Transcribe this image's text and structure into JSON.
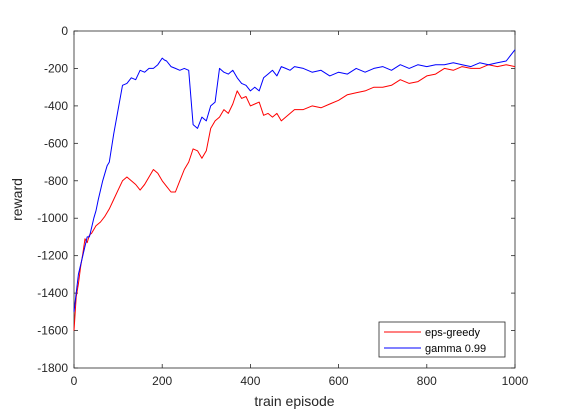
{
  "chart_data": {
    "type": "line",
    "xlabel": "train episode",
    "ylabel": "reward",
    "xlim": [
      0,
      1000
    ],
    "ylim": [
      -1800,
      0
    ],
    "xticks": [
      0,
      200,
      400,
      600,
      800,
      1000
    ],
    "yticks": [
      -1800,
      -1600,
      -1400,
      -1200,
      -1000,
      -800,
      -600,
      -400,
      -200,
      0
    ],
    "grid": false,
    "legend_position": "bottom-right",
    "series": [
      {
        "name": "eps-greedy",
        "color": "#ff0000",
        "x": [
          0,
          5,
          10,
          15,
          20,
          25,
          30,
          35,
          40,
          45,
          50,
          60,
          70,
          80,
          90,
          100,
          110,
          120,
          130,
          140,
          150,
          160,
          170,
          180,
          190,
          200,
          210,
          220,
          230,
          240,
          250,
          260,
          270,
          280,
          290,
          300,
          310,
          320,
          330,
          340,
          350,
          360,
          370,
          380,
          390,
          400,
          410,
          420,
          430,
          440,
          450,
          460,
          470,
          480,
          490,
          500,
          520,
          540,
          560,
          580,
          600,
          620,
          640,
          660,
          680,
          700,
          720,
          740,
          760,
          780,
          800,
          820,
          840,
          860,
          880,
          900,
          920,
          940,
          960,
          980,
          1000
        ],
        "y": [
          -1600,
          -1420,
          -1350,
          -1260,
          -1190,
          -1110,
          -1130,
          -1090,
          -1080,
          -1060,
          -1040,
          -1020,
          -990,
          -950,
          -900,
          -850,
          -800,
          -780,
          -800,
          -820,
          -850,
          -820,
          -780,
          -740,
          -760,
          -800,
          -830,
          -860,
          -860,
          -800,
          -740,
          -700,
          -630,
          -640,
          -680,
          -640,
          -520,
          -480,
          -460,
          -420,
          -440,
          -390,
          -320,
          -360,
          -350,
          -400,
          -390,
          -380,
          -450,
          -440,
          -460,
          -440,
          -480,
          -460,
          -440,
          -420,
          -420,
          -400,
          -410,
          -390,
          -370,
          -340,
          -330,
          -320,
          -300,
          -300,
          -290,
          -260,
          -280,
          -270,
          -240,
          -230,
          -200,
          -210,
          -190,
          -200,
          -200,
          -180,
          -190,
          -180,
          -190
        ]
      },
      {
        "name": "gamma 0.99",
        "color": "#0000ff",
        "x": [
          0,
          5,
          10,
          15,
          20,
          25,
          30,
          35,
          40,
          45,
          50,
          55,
          60,
          65,
          70,
          75,
          80,
          90,
          100,
          110,
          120,
          130,
          140,
          150,
          160,
          170,
          180,
          190,
          200,
          205,
          210,
          220,
          230,
          240,
          250,
          260,
          270,
          280,
          290,
          300,
          310,
          320,
          330,
          340,
          350,
          360,
          370,
          380,
          390,
          400,
          410,
          420,
          430,
          440,
          450,
          460,
          470,
          480,
          490,
          500,
          520,
          540,
          560,
          580,
          600,
          620,
          640,
          660,
          680,
          700,
          720,
          740,
          760,
          780,
          800,
          820,
          840,
          860,
          880,
          900,
          920,
          940,
          960,
          980,
          1000
        ],
        "y": [
          -1500,
          -1400,
          -1300,
          -1250,
          -1200,
          -1150,
          -1100,
          -1100,
          -1050,
          -1000,
          -960,
          -900,
          -850,
          -800,
          -760,
          -720,
          -700,
          -550,
          -420,
          -290,
          -280,
          -250,
          -260,
          -210,
          -220,
          -200,
          -200,
          -180,
          -145,
          -155,
          -160,
          -190,
          -200,
          -210,
          -200,
          -210,
          -500,
          -520,
          -460,
          -480,
          -400,
          -380,
          -200,
          -220,
          -230,
          -210,
          -250,
          -280,
          -290,
          -320,
          -300,
          -320,
          -250,
          -230,
          -210,
          -240,
          -190,
          -200,
          -210,
          -190,
          -200,
          -220,
          -210,
          -240,
          -220,
          -230,
          -200,
          -220,
          -200,
          -190,
          -210,
          -180,
          -200,
          -180,
          -190,
          -180,
          -180,
          -170,
          -180,
          -190,
          -170,
          -180,
          -170,
          -160,
          -100
        ]
      }
    ]
  }
}
